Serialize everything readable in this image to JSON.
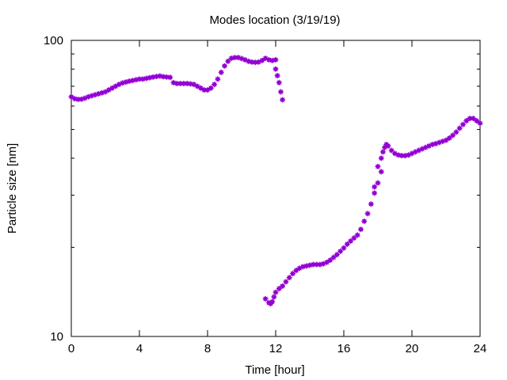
{
  "chart_data": {
    "type": "scatter",
    "title": "Modes location (3/19/19)",
    "xlabel": "Time [hour]",
    "ylabel": "Particle size [nm]",
    "xlim": [
      0,
      24
    ],
    "ylim": [
      10,
      100
    ],
    "yscale": "log",
    "grid": false,
    "legend": "none",
    "marker_color": "#9400d3",
    "x_ticks": [
      "0",
      "4",
      "8",
      "12",
      "16",
      "20",
      "24"
    ],
    "y_ticks": [
      "10",
      "100"
    ],
    "series": [
      {
        "points": [
          [
            0.0,
            64.5
          ],
          [
            0.2,
            63.5
          ],
          [
            0.4,
            63.2
          ],
          [
            0.6,
            63.3
          ],
          [
            0.8,
            63.8
          ],
          [
            1.0,
            64.5
          ],
          [
            1.2,
            65.0
          ],
          [
            1.4,
            65.5
          ],
          [
            1.6,
            66.0
          ],
          [
            1.8,
            66.5
          ],
          [
            2.0,
            67.0
          ],
          [
            2.2,
            68.0
          ],
          [
            2.4,
            69.0
          ],
          [
            2.6,
            70.0
          ],
          [
            2.8,
            71.0
          ],
          [
            3.0,
            71.8
          ],
          [
            3.2,
            72.3
          ],
          [
            3.4,
            72.8
          ],
          [
            3.6,
            73.2
          ],
          [
            3.8,
            73.6
          ],
          [
            4.0,
            74.0
          ],
          [
            4.2,
            74.0
          ],
          [
            4.4,
            74.4
          ],
          [
            4.6,
            74.8
          ],
          [
            4.8,
            75.2
          ],
          [
            5.0,
            75.5
          ],
          [
            5.2,
            75.8
          ],
          [
            5.4,
            75.4
          ],
          [
            5.6,
            75.2
          ],
          [
            5.8,
            75.0
          ],
          [
            6.0,
            72.0
          ],
          [
            6.2,
            71.5
          ],
          [
            6.4,
            71.5
          ],
          [
            6.6,
            71.5
          ],
          [
            6.8,
            71.5
          ],
          [
            7.0,
            71.3
          ],
          [
            7.2,
            71.0
          ],
          [
            7.4,
            70.0
          ],
          [
            7.6,
            69.0
          ],
          [
            7.8,
            68.0
          ],
          [
            8.0,
            68.0
          ],
          [
            8.2,
            69.0
          ],
          [
            8.4,
            71.0
          ],
          [
            8.6,
            74.0
          ],
          [
            8.8,
            78.0
          ],
          [
            9.0,
            82.0
          ],
          [
            9.2,
            85.0
          ],
          [
            9.4,
            87.0
          ],
          [
            9.6,
            87.5
          ],
          [
            9.8,
            87.5
          ],
          [
            10.0,
            86.8
          ],
          [
            10.2,
            86.0
          ],
          [
            10.4,
            85.0
          ],
          [
            10.6,
            84.5
          ],
          [
            10.8,
            84.3
          ],
          [
            11.0,
            84.5
          ],
          [
            11.2,
            85.5
          ],
          [
            11.4,
            87.0
          ],
          [
            11.6,
            86.0
          ],
          [
            11.8,
            85.5
          ],
          [
            12.0,
            86.0
          ],
          [
            12.0,
            80.0
          ],
          [
            12.1,
            76.0
          ],
          [
            12.2,
            72.0
          ],
          [
            12.3,
            67.0
          ],
          [
            12.4,
            63.0
          ],
          [
            11.4,
            13.4
          ],
          [
            11.6,
            13.0
          ],
          [
            11.7,
            12.9
          ],
          [
            11.8,
            13.1
          ],
          [
            11.9,
            13.6
          ],
          [
            12.0,
            14.1
          ],
          [
            12.2,
            14.5
          ],
          [
            12.4,
            14.8
          ],
          [
            12.6,
            15.3
          ],
          [
            12.8,
            15.8
          ],
          [
            13.0,
            16.3
          ],
          [
            13.2,
            16.7
          ],
          [
            13.4,
            17.0
          ],
          [
            13.6,
            17.2
          ],
          [
            13.8,
            17.3
          ],
          [
            14.0,
            17.4
          ],
          [
            14.2,
            17.5
          ],
          [
            14.4,
            17.5
          ],
          [
            14.6,
            17.5
          ],
          [
            14.8,
            17.6
          ],
          [
            15.0,
            17.8
          ],
          [
            15.2,
            18.1
          ],
          [
            15.4,
            18.5
          ],
          [
            15.6,
            18.9
          ],
          [
            15.8,
            19.4
          ],
          [
            16.0,
            19.9
          ],
          [
            16.2,
            20.5
          ],
          [
            16.4,
            21.0
          ],
          [
            16.6,
            21.5
          ],
          [
            16.8,
            22.0
          ],
          [
            17.0,
            23.0
          ],
          [
            17.2,
            24.5
          ],
          [
            17.4,
            26.0
          ],
          [
            17.6,
            28.0
          ],
          [
            17.8,
            30.5
          ],
          [
            18.0,
            33.0
          ],
          [
            18.2,
            36.0
          ],
          [
            18.4,
            43.5
          ],
          [
            18.5,
            44.5
          ],
          [
            18.6,
            44.0
          ],
          [
            18.8,
            42.5
          ],
          [
            19.0,
            41.5
          ],
          [
            19.2,
            41.0
          ],
          [
            19.4,
            40.8
          ],
          [
            19.6,
            40.8
          ],
          [
            19.8,
            41.0
          ],
          [
            20.0,
            41.5
          ],
          [
            20.2,
            42.0
          ],
          [
            20.4,
            42.5
          ],
          [
            20.6,
            43.0
          ],
          [
            20.8,
            43.5
          ],
          [
            21.0,
            44.0
          ],
          [
            21.2,
            44.5
          ],
          [
            21.4,
            44.8
          ],
          [
            21.6,
            45.2
          ],
          [
            21.8,
            45.6
          ],
          [
            22.0,
            46.0
          ],
          [
            22.2,
            46.8
          ],
          [
            22.4,
            47.8
          ],
          [
            22.6,
            49.0
          ],
          [
            22.8,
            50.5
          ],
          [
            23.0,
            52.0
          ],
          [
            23.2,
            53.5
          ],
          [
            23.4,
            54.5
          ],
          [
            23.6,
            54.5
          ],
          [
            23.8,
            53.5
          ],
          [
            24.0,
            52.5
          ],
          [
            17.8,
            32.0
          ],
          [
            18.0,
            37.5
          ],
          [
            18.2,
            40.0
          ],
          [
            18.3,
            42.0
          ]
        ]
      }
    ]
  }
}
